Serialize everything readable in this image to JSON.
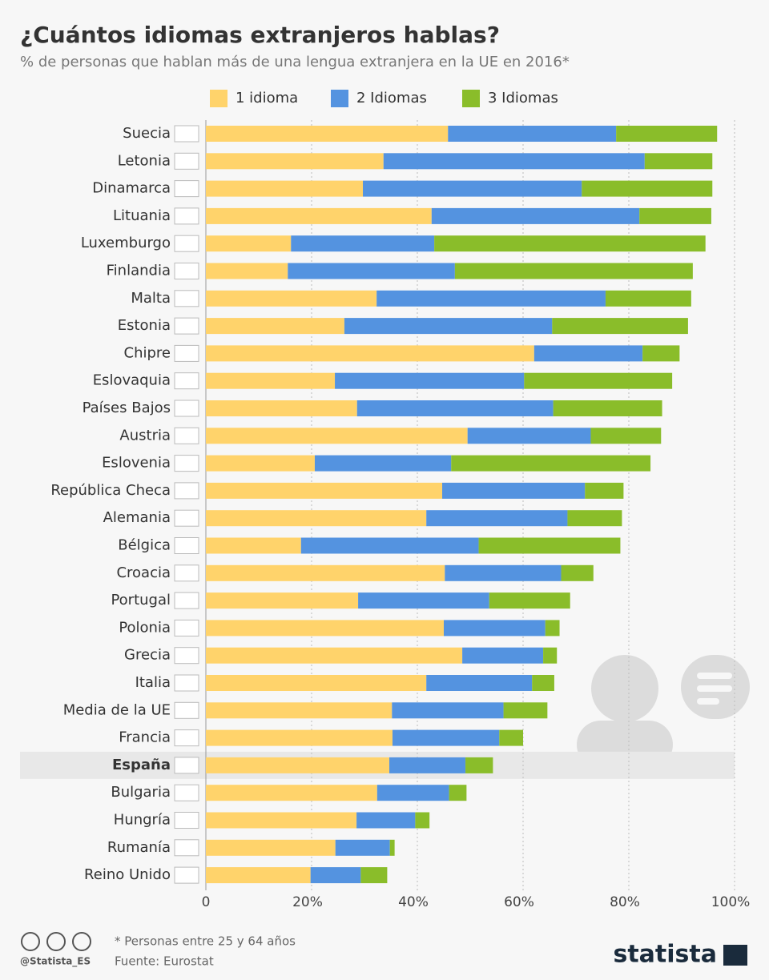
{
  "chart_data": {
    "type": "stacked-barh",
    "title": "¿Cuántos idiomas extranjeros hablas?",
    "subtitle": "% de personas que hablan más de una lengua extranjera en la UE en 2016*",
    "categories": [
      "Suecia",
      "Letonia",
      "Dinamarca",
      "Lituania",
      "Luxemburgo",
      "Finlandia",
      "Malta",
      "Estonia",
      "Chipre",
      "Eslovaquia",
      "Países Bajos",
      "Austria",
      "Eslovenia",
      "República Checa",
      "Alemania",
      "Bélgica",
      "Croacia",
      "Portugal",
      "Polonia",
      "Grecia",
      "Italia",
      "Media de la UE",
      "Francia",
      "España",
      "Bulgaria",
      "Hungría",
      "Rumanía",
      "Reino Unido"
    ],
    "series": [
      {
        "name": "1 idioma",
        "color": "#ffd36b",
        "values": [
          45.8,
          33.6,
          29.7,
          42.7,
          16.1,
          15.5,
          32.3,
          26.2,
          62.1,
          24.4,
          28.6,
          49.5,
          20.6,
          44.7,
          41.7,
          18.0,
          45.2,
          28.8,
          45.0,
          48.5,
          41.7,
          35.2,
          35.3,
          34.7,
          32.4,
          28.5,
          24.5,
          19.8
        ]
      },
      {
        "name": "2 Idiomas",
        "color": "#5493e0",
        "values": [
          31.8,
          49.4,
          41.4,
          39.3,
          27.1,
          31.6,
          43.3,
          39.3,
          20.5,
          35.8,
          37.1,
          23.3,
          25.8,
          27.0,
          26.7,
          33.6,
          22.0,
          24.8,
          19.2,
          15.3,
          20.0,
          21.1,
          20.2,
          14.4,
          13.6,
          11.1,
          10.3,
          9.5
        ]
      },
      {
        "name": "3 Idiomas",
        "color": "#8abd2a",
        "values": [
          19.1,
          12.8,
          24.7,
          13.6,
          51.3,
          45.0,
          16.2,
          25.7,
          7.0,
          28.0,
          20.6,
          13.3,
          37.7,
          7.3,
          10.3,
          26.8,
          6.1,
          15.3,
          2.7,
          2.6,
          4.2,
          8.3,
          4.5,
          5.2,
          3.3,
          2.7,
          0.9,
          5.0
        ]
      }
    ],
    "xlim": [
      0,
      100
    ],
    "xticks": [
      0,
      {
        "value": 20,
        "label": "20%"
      },
      {
        "value": 40,
        "label": "40%"
      },
      {
        "value": 60,
        "label": "60%"
      },
      {
        "value": 80,
        "label": "80%"
      },
      {
        "value": 100,
        "label": "100%"
      }
    ],
    "grid": true,
    "highlight": 23,
    "note": "* Personas entre 25 y 64 años",
    "source": "Fuente: Eurostat",
    "credit": "@Statista_ES",
    "brand": "statista"
  }
}
